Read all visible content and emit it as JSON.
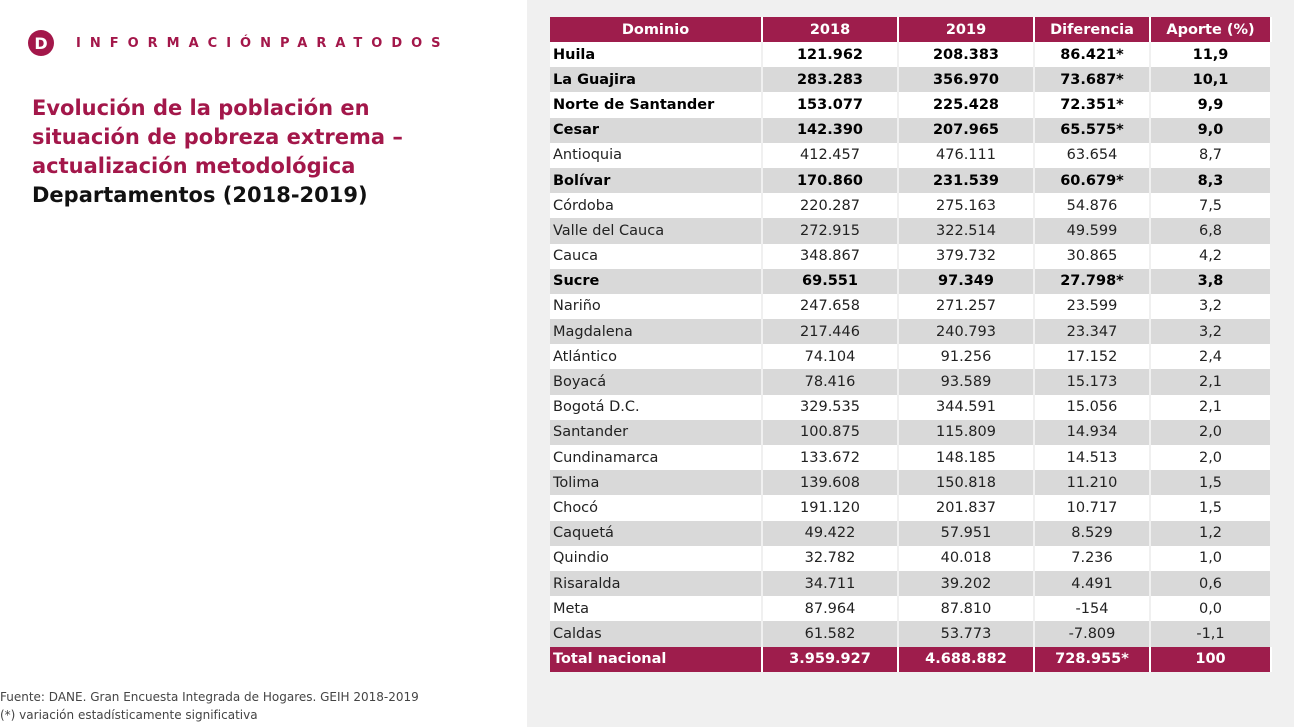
{
  "header": {
    "logo": "D",
    "brand": "INFORMACIÓNPARATODOS"
  },
  "title": {
    "main": "Evolución de la población en situación de pobreza extrema – actualización metodológica",
    "sub": "Departamentos (2018-2019)"
  },
  "footer": {
    "source": "Fuente: DANE. Gran Encuesta Integrada de Hogares. GEIH 2018-2019",
    "note": "(*) variación estadísticamente significativa"
  },
  "table": {
    "header": [
      "Dominio",
      "2018",
      "2019",
      "Diferencia",
      "Aporte (%)"
    ],
    "rows": [
      {
        "cells": [
          "Huila",
          "121.962",
          "208.383",
          "86.421*",
          "11,9"
        ],
        "bold": true
      },
      {
        "cells": [
          "La Guajira",
          "283.283",
          "356.970",
          "73.687*",
          "10,1"
        ],
        "bold": true
      },
      {
        "cells": [
          "Norte de Santander",
          "153.077",
          "225.428",
          "72.351*",
          "9,9"
        ],
        "bold": true
      },
      {
        "cells": [
          "Cesar",
          "142.390",
          "207.965",
          "65.575*",
          "9,0"
        ],
        "bold": true
      },
      {
        "cells": [
          "Antioquia",
          "412.457",
          "476.111",
          "63.654",
          "8,7"
        ],
        "bold": false
      },
      {
        "cells": [
          "Bolívar",
          "170.860",
          "231.539",
          "60.679*",
          "8,3"
        ],
        "bold": true
      },
      {
        "cells": [
          "Córdoba",
          "220.287",
          "275.163",
          "54.876",
          "7,5"
        ],
        "bold": false
      },
      {
        "cells": [
          "Valle del Cauca",
          "272.915",
          "322.514",
          "49.599",
          "6,8"
        ],
        "bold": false
      },
      {
        "cells": [
          "Cauca",
          "348.867",
          "379.732",
          "30.865",
          "4,2"
        ],
        "bold": false
      },
      {
        "cells": [
          "Sucre",
          "69.551",
          "97.349",
          "27.798*",
          "3,8"
        ],
        "bold": true
      },
      {
        "cells": [
          "Nariño",
          "247.658",
          "271.257",
          "23.599",
          "3,2"
        ],
        "bold": false
      },
      {
        "cells": [
          "Magdalena",
          "217.446",
          "240.793",
          "23.347",
          "3,2"
        ],
        "bold": false
      },
      {
        "cells": [
          "Atlántico",
          "74.104",
          "91.256",
          "17.152",
          "2,4"
        ],
        "bold": false
      },
      {
        "cells": [
          "Boyacá",
          "78.416",
          "93.589",
          "15.173",
          "2,1"
        ],
        "bold": false
      },
      {
        "cells": [
          "Bogotá D.C.",
          "329.535",
          "344.591",
          "15.056",
          "2,1"
        ],
        "bold": false
      },
      {
        "cells": [
          "Santander",
          "100.875",
          "115.809",
          "14.934",
          "2,0"
        ],
        "bold": false
      },
      {
        "cells": [
          "Cundinamarca",
          "133.672",
          "148.185",
          "14.513",
          "2,0"
        ],
        "bold": false
      },
      {
        "cells": [
          "Tolima",
          "139.608",
          "150.818",
          "11.210",
          "1,5"
        ],
        "bold": false
      },
      {
        "cells": [
          "Chocó",
          "191.120",
          "201.837",
          "10.717",
          "1,5"
        ],
        "bold": false
      },
      {
        "cells": [
          "Caquetá",
          "49.422",
          "57.951",
          "8.529",
          "1,2"
        ],
        "bold": false
      },
      {
        "cells": [
          "Quindio",
          "32.782",
          "40.018",
          "7.236",
          "1,0"
        ],
        "bold": false
      },
      {
        "cells": [
          "Risaralda",
          "34.711",
          "39.202",
          "4.491",
          "0,6"
        ],
        "bold": false
      },
      {
        "cells": [
          "Meta",
          "87.964",
          "87.810",
          "-154",
          "0,0"
        ],
        "bold": false
      },
      {
        "cells": [
          "Caldas",
          "61.582",
          "53.773",
          "-7.809",
          "-1,1"
        ],
        "bold": false
      }
    ],
    "total": [
      "Total nacional",
      "3.959.927",
      "4.688.882",
      "728.955*",
      "100"
    ]
  }
}
